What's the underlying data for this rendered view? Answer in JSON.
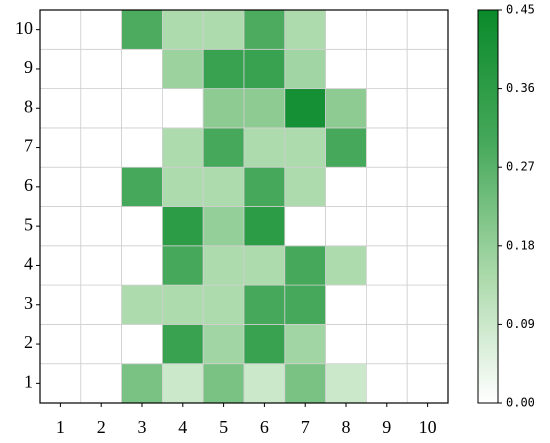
{
  "chart_data": {
    "type": "heatmap",
    "x": [
      "1",
      "2",
      "3",
      "4",
      "5",
      "6",
      "7",
      "8",
      "9",
      "10"
    ],
    "y": [
      "1",
      "2",
      "3",
      "4",
      "5",
      "6",
      "7",
      "8",
      "9",
      "10"
    ],
    "values": [
      [
        0,
        0,
        0.22,
        0.09,
        0.22,
        0.09,
        0.22,
        0.09,
        0,
        0
      ],
      [
        0,
        0,
        0,
        0.33,
        0.16,
        0.33,
        0.16,
        0,
        0,
        0
      ],
      [
        0,
        0,
        0.14,
        0.14,
        0.14,
        0.3,
        0.3,
        0,
        0,
        0
      ],
      [
        0,
        0,
        0,
        0.3,
        0.14,
        0.14,
        0.3,
        0.14,
        0,
        0
      ],
      [
        0,
        0,
        0,
        0.36,
        0.18,
        0.36,
        0,
        0,
        0,
        0
      ],
      [
        0,
        0,
        0.3,
        0.14,
        0.14,
        0.3,
        0.14,
        0,
        0,
        0
      ],
      [
        0,
        0,
        0,
        0.14,
        0.3,
        0.14,
        0.14,
        0.3,
        0,
        0
      ],
      [
        0,
        0,
        0,
        0,
        0.19,
        0.19,
        0.42,
        0.19,
        0,
        0
      ],
      [
        0,
        0,
        0,
        0.17,
        0.33,
        0.33,
        0.16,
        0,
        0,
        0
      ],
      [
        0,
        0,
        0.29,
        0.14,
        0.14,
        0.29,
        0.14,
        0,
        0,
        0
      ]
    ],
    "colorscale": [
      "#ffffff",
      "#a8d8a8",
      "#45a85a",
      "#0a8a2a"
    ],
    "clim": [
      0,
      0.45
    ],
    "cticks": [
      {
        "value": 0,
        "label": "0.00"
      },
      {
        "value": 0.09,
        "label": "0.09"
      },
      {
        "value": 0.18,
        "label": "0.18"
      },
      {
        "value": 0.27,
        "label": "0.27"
      },
      {
        "value": 0.36,
        "label": "0.36"
      },
      {
        "value": 0.45,
        "label": "0.45"
      }
    ]
  }
}
